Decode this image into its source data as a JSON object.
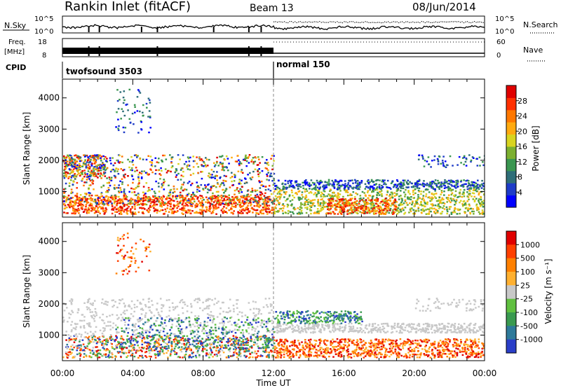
{
  "header": {
    "title": "Rankin Inlet (fitACF)",
    "beam": "Beam 13",
    "date": "08/Jun/2014"
  },
  "noise_panel": {
    "left_label": "N.Sky",
    "left_ticks": [
      "10^5",
      "10^0"
    ],
    "right_label": "N.Search",
    "right_ticks": [
      "10^5",
      "10^0"
    ]
  },
  "freq_panel": {
    "left_label_1": "Freq.",
    "left_label_2": "[MHz]",
    "left_ticks": [
      "18",
      "8"
    ],
    "right_label": "Nave",
    "right_ticks": [
      "60",
      "0"
    ]
  },
  "cpid_panel": {
    "label": "CPID",
    "modes": [
      {
        "name": "twofsound 3503",
        "start_hour": 0
      },
      {
        "name": "normal 150",
        "start_hour": 12
      }
    ]
  },
  "chart_data": [
    {
      "type": "heatmap",
      "name": "Power",
      "xlabel": "",
      "ylabel": "Slant Range [km]",
      "xlim": [
        0,
        24
      ],
      "ylim": [
        180,
        4600
      ],
      "yticks": [
        1000,
        2000,
        3000,
        4000
      ],
      "colorbar": {
        "label": "Power [dB]",
        "range": [
          0,
          32
        ],
        "ticks": [
          4,
          8,
          12,
          16,
          20,
          24,
          28
        ],
        "colors": [
          "#0000ff",
          "#1e3cc8",
          "#2e6e78",
          "#3a9650",
          "#7cb030",
          "#d8d420",
          "#ffaa10",
          "#ff7800",
          "#ff3000",
          "#e00000"
        ]
      }
    },
    {
      "type": "heatmap",
      "name": "Velocity",
      "xlabel": "Time UT",
      "ylabel": "Slant Range [km]",
      "xlim": [
        0,
        24
      ],
      "ylim": [
        180,
        4600
      ],
      "yticks": [
        1000,
        2000,
        3000,
        4000
      ],
      "xticks": [
        "00:00",
        "04:00",
        "08:00",
        "12:00",
        "16:00",
        "20:00",
        "00:00"
      ],
      "colorbar": {
        "label": "Velocity [m s⁻¹]",
        "ticks": [
          "1000",
          "500",
          "100",
          "25",
          "-25",
          "-100",
          "-500",
          "-1000"
        ],
        "colors": [
          "#2a3ec8",
          "#2e7a9a",
          "#3a9a50",
          "#60c040",
          "#c8c8c8",
          "#ffb030",
          "#ff8000",
          "#ff4000",
          "#e00000"
        ]
      }
    }
  ]
}
